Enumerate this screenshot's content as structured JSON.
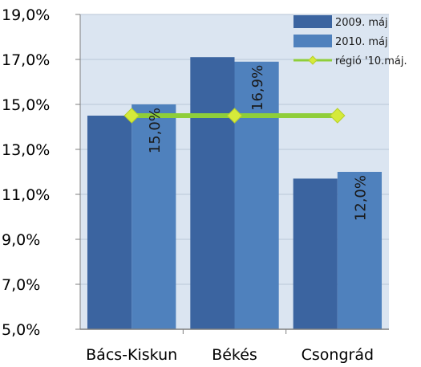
{
  "chart_data": {
    "type": "bar",
    "categories": [
      "Bács-Kiskun",
      "Békés",
      "Csongrád"
    ],
    "series": [
      {
        "name": "2009. máj",
        "type": "bar",
        "values": [
          14.5,
          17.1,
          11.7
        ],
        "color": "#3b64a0"
      },
      {
        "name": "2010. máj",
        "type": "bar",
        "values": [
          15.0,
          16.9,
          12.0
        ],
        "color": "#4f81bd",
        "data_labels": [
          "15,0%",
          "16,9%",
          "12,0%"
        ]
      },
      {
        "name": "régió '10.máj.",
        "type": "line",
        "values": [
          14.5,
          14.5,
          14.5
        ],
        "color": "#8fce3a",
        "marker_color": "#d5ea3a"
      }
    ],
    "ylim": [
      5,
      19
    ],
    "yticks": [
      "5,0%",
      "7,0%",
      "9,0%",
      "11,0%",
      "13,0%",
      "15,0%",
      "17,0%",
      "19,0%"
    ],
    "ytick_values": [
      5,
      7,
      9,
      11,
      13,
      15,
      17,
      19
    ],
    "grid": true,
    "legend_position": "top-right",
    "plot_background": "#dbe5f1",
    "title": "",
    "xlabel": "",
    "ylabel": ""
  }
}
